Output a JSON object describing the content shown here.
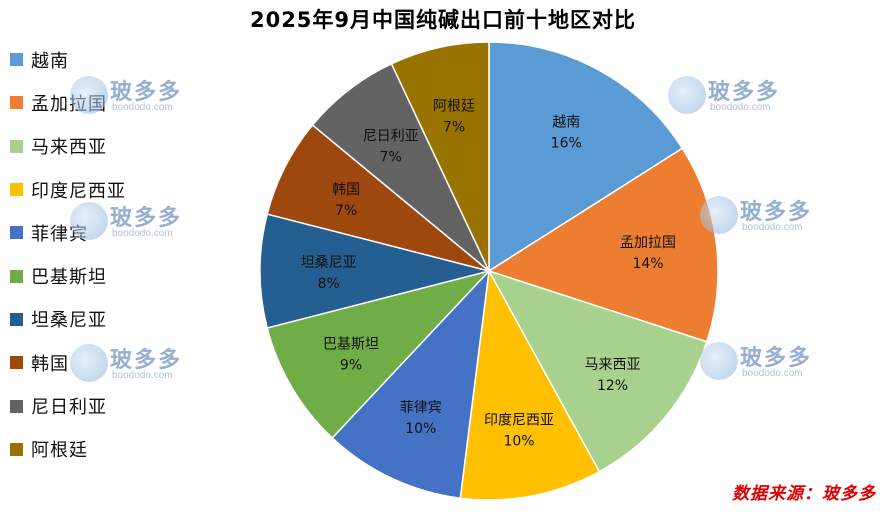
{
  "chart_data": {
    "type": "pie",
    "title": "2025年9月中国纯碱出口前十地区对比",
    "legend_position": "left",
    "slices": [
      {
        "label": "越南",
        "value": 16,
        "value_label": "16%",
        "color": "#5b9bd5"
      },
      {
        "label": "孟加拉国",
        "value": 14,
        "value_label": "14%",
        "color": "#ed7d31"
      },
      {
        "label": "马来西亚",
        "value": 12,
        "value_label": "12%",
        "color": "#a9d18e"
      },
      {
        "label": "印度尼西亚",
        "value": 10,
        "value_label": "10%",
        "color": "#ffc000"
      },
      {
        "label": "菲律宾",
        "value": 10,
        "value_label": "10%",
        "color": "#4472c4"
      },
      {
        "label": "巴基斯坦",
        "value": 9,
        "value_label": "9%",
        "color": "#70ad47"
      },
      {
        "label": "坦桑尼亚",
        "value": 8,
        "value_label": "8%",
        "color": "#255e91"
      },
      {
        "label": "韩国",
        "value": 7,
        "value_label": "7%",
        "color": "#9e480e"
      },
      {
        "label": "尼日利亚",
        "value": 7,
        "value_label": "7%",
        "color": "#636363"
      },
      {
        "label": "阿根廷",
        "value": 7,
        "value_label": "7%",
        "color": "#997300"
      }
    ]
  },
  "source": "数据来源：玻多多",
  "watermark": {
    "text": "玻多多",
    "sub": "boododo.com"
  }
}
